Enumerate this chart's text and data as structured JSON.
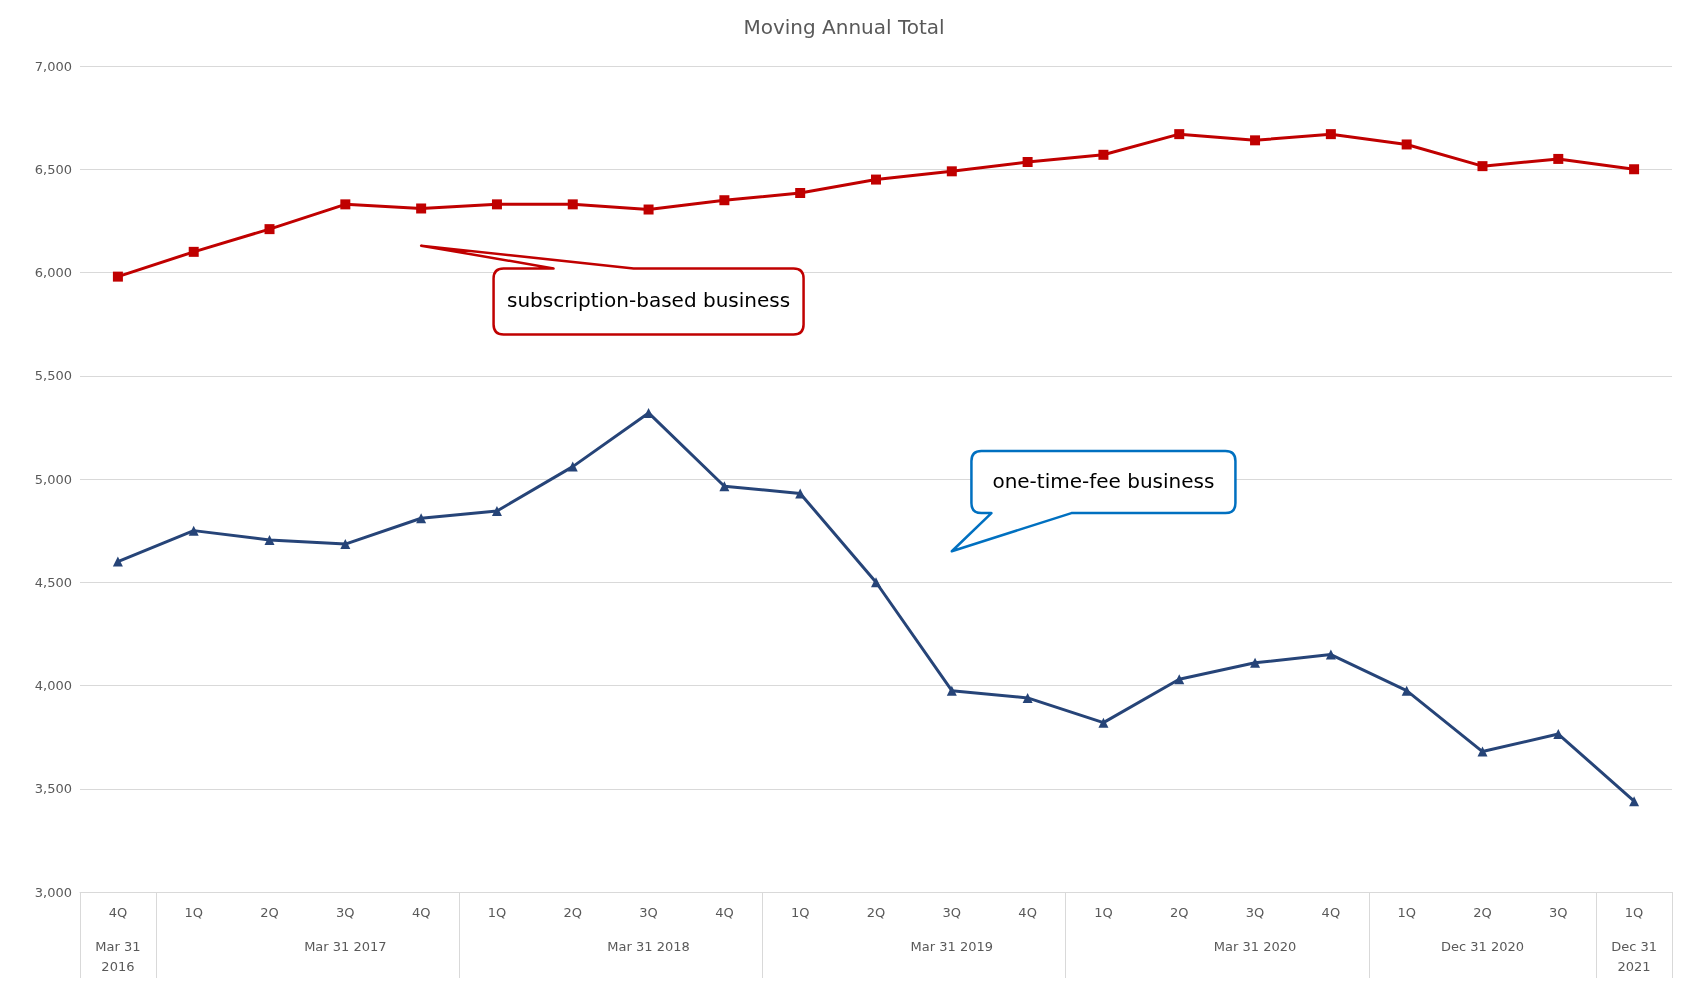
{
  "chart_data": {
    "type": "line",
    "title": "Moving Annual Total",
    "categories": [
      "4Q",
      "1Q",
      "2Q",
      "3Q",
      "4Q",
      "1Q",
      "2Q",
      "3Q",
      "4Q",
      "1Q",
      "2Q",
      "3Q",
      "4Q",
      "1Q",
      "2Q",
      "3Q",
      "4Q",
      "1Q",
      "2Q",
      "3Q",
      "1Q"
    ],
    "series": [
      {
        "color": "#c00000",
        "marker": "square",
        "values": [
          5980,
          6100,
          6210,
          6330,
          6310,
          6330,
          6330,
          6305,
          6350,
          6385,
          6450,
          6490,
          6535,
          6570,
          6670,
          6640,
          6670,
          6620,
          6515,
          6550,
          6500
        ]
      },
      {
        "color": "#264478",
        "marker": "triangle",
        "values": [
          4600,
          4750,
          4705,
          4685,
          4810,
          4845,
          5060,
          5320,
          4965,
          4930,
          4500,
          3975,
          3940,
          3820,
          4030,
          4110,
          4150,
          3975,
          3680,
          3765,
          3440
        ]
      }
    ],
    "ylim": [
      3000,
      7000
    ],
    "yticks": [
      {
        "value": 3000,
        "label": "3,000"
      },
      {
        "value": 3500,
        "label": "3,500"
      },
      {
        "value": 4000,
        "label": "4,000"
      },
      {
        "value": 4500,
        "label": "4,500"
      },
      {
        "value": 5000,
        "label": "5,000"
      },
      {
        "value": 5500,
        "label": "5,500"
      },
      {
        "value": 6000,
        "label": "6,000"
      },
      {
        "value": 6500,
        "label": "6,500"
      },
      {
        "value": 7000,
        "label": "7,000"
      }
    ],
    "grid": "y",
    "annotations": [
      "subscription-based business",
      "one-time-fee business",
      "Mar 31\n2016",
      "Mar 31 2017",
      "Mar 31 2018",
      "Mar 31 2019",
      "Mar 31 2020",
      "Dec 31 2020",
      "Dec 31\n2021"
    ]
  }
}
